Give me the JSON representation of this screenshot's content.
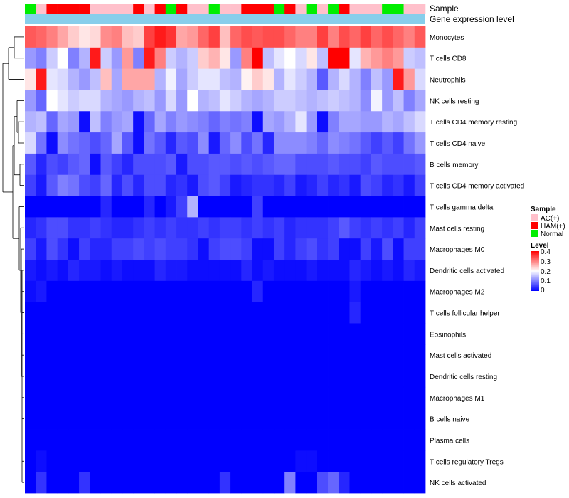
{
  "chart_data": {
    "type": "heatmap",
    "title": "",
    "annotation_labels": [
      "Sample",
      "Gene expression level"
    ],
    "rows": [
      "Monocytes",
      "T cells CD8",
      "Neutrophils",
      "NK cells resting",
      "T cells CD4 memory resting",
      "T cells CD4 naive",
      "B cells memory",
      "T cells CD4 memory activated",
      "T cells gamma delta",
      "Mast cells resting",
      "Macrophages M0",
      "Dendritic cells activated",
      "Macrophages M2",
      "T cells follicular helper",
      "Eosinophils",
      "Mast cells activated",
      "Dendritic cells resting",
      "Macrophages M1",
      "B cells naive",
      "Plasma cells",
      "T cells regulatory  Tregs",
      "NK cells activated"
    ],
    "sample_groups": [
      "Normal",
      "AC(+)",
      "HAM(+)",
      "HAM(+)",
      "HAM(+)",
      "HAM(+)",
      "AC(+)",
      "AC(+)",
      "AC(+)",
      "AC(+)",
      "HAM(+)",
      "AC(+)",
      "HAM(+)",
      "Normal",
      "HAM(+)",
      "AC(+)",
      "AC(+)",
      "Normal",
      "AC(+)",
      "AC(+)",
      "HAM(+)",
      "HAM(+)",
      "HAM(+)",
      "Normal",
      "HAM(+)",
      "AC(+)",
      "Normal",
      "AC(+)",
      "Normal",
      "HAM(+)",
      "AC(+)",
      "AC(+)",
      "AC(+)",
      "Normal",
      "Normal",
      "AC(+)",
      "AC(+)"
    ],
    "legend_sample": {
      "title": "Sample",
      "entries": [
        {
          "label": "AC(+)",
          "color": "#ffc0cb"
        },
        {
          "label": "HAM(+)",
          "color": "#ff0000"
        },
        {
          "label": "Normal",
          "color": "#00ee00"
        }
      ]
    },
    "legend_level": {
      "title": "Level",
      "ticks": [
        "0.4",
        "0.3",
        "0.2",
        "0.1",
        "0"
      ],
      "range": [
        0,
        0.4
      ],
      "colors": {
        "low": "#0000ff",
        "mid": "#ffffff",
        "high": "#ff0000"
      }
    },
    "expression_bar_color": "#87ceeb",
    "values": [
      [
        0.33,
        0.32,
        0.3,
        0.27,
        0.24,
        0.22,
        0.23,
        0.29,
        0.3,
        0.25,
        0.24,
        0.35,
        0.38,
        0.36,
        0.27,
        0.28,
        0.32,
        0.35,
        0.25,
        0.32,
        0.34,
        0.33,
        0.34,
        0.34,
        0.32,
        0.3,
        0.3,
        0.35,
        0.3,
        0.34,
        0.32,
        0.35,
        0.32,
        0.34,
        0.32,
        0.3,
        0.33
      ],
      [
        0.12,
        0.1,
        0.16,
        0.2,
        0.1,
        0.14,
        0.38,
        0.16,
        0.12,
        0.28,
        0.1,
        0.38,
        0.3,
        0.16,
        0.14,
        0.16,
        0.24,
        0.26,
        0.22,
        0.12,
        0.3,
        0.4,
        0.15,
        0.18,
        0.2,
        0.17,
        0.22,
        0.15,
        0.4,
        0.4,
        0.18,
        0.26,
        0.28,
        0.3,
        0.28,
        0.16,
        0.15
      ],
      [
        0.22,
        0.38,
        0.18,
        0.17,
        0.14,
        0.12,
        0.15,
        0.25,
        0.13,
        0.27,
        0.27,
        0.27,
        0.14,
        0.19,
        0.13,
        0.16,
        0.18,
        0.18,
        0.15,
        0.14,
        0.21,
        0.24,
        0.22,
        0.14,
        0.18,
        0.16,
        0.14,
        0.07,
        0.14,
        0.17,
        0.14,
        0.1,
        0.15,
        0.12,
        0.38,
        0.28,
        0.17
      ],
      [
        0.12,
        0.08,
        0.2,
        0.18,
        0.16,
        0.17,
        0.17,
        0.14,
        0.13,
        0.12,
        0.14,
        0.15,
        0.12,
        0.17,
        0.12,
        0.2,
        0.14,
        0.15,
        0.18,
        0.16,
        0.14,
        0.13,
        0.14,
        0.16,
        0.16,
        0.15,
        0.14,
        0.15,
        0.16,
        0.15,
        0.14,
        0.11,
        0.19,
        0.12,
        0.15,
        0.1,
        0.13
      ],
      [
        0.14,
        0.15,
        0.08,
        0.13,
        0.12,
        0.01,
        0.15,
        0.1,
        0.12,
        0.13,
        0.01,
        0.08,
        0.13,
        0.1,
        0.12,
        0.11,
        0.1,
        0.08,
        0.1,
        0.09,
        0.1,
        0.01,
        0.13,
        0.12,
        0.14,
        0.18,
        0.12,
        0.01,
        0.1,
        0.13,
        0.13,
        0.12,
        0.12,
        0.14,
        0.13,
        0.15,
        0.17
      ],
      [
        0.17,
        0.09,
        0.01,
        0.11,
        0.09,
        0.08,
        0.06,
        0.08,
        0.13,
        0.07,
        0.01,
        0.09,
        0.07,
        0.03,
        0.07,
        0.06,
        0.11,
        0.02,
        0.08,
        0.11,
        0.06,
        0.09,
        0.03,
        0.11,
        0.11,
        0.11,
        0.1,
        0.08,
        0.11,
        0.1,
        0.09,
        0.07,
        0.05,
        0.07,
        0.05,
        0.09,
        0.12
      ],
      [
        0.07,
        0.03,
        0.06,
        0.05,
        0.07,
        0.08,
        0.01,
        0.07,
        0.05,
        0.03,
        0.06,
        0.06,
        0.06,
        0.07,
        0.02,
        0.06,
        0.06,
        0.07,
        0.07,
        0.06,
        0.07,
        0.06,
        0.07,
        0.08,
        0.08,
        0.06,
        0.06,
        0.06,
        0.07,
        0.06,
        0.06,
        0.05,
        0.07,
        0.06,
        0.06,
        0.06,
        0.07
      ],
      [
        0.05,
        0.02,
        0.07,
        0.1,
        0.09,
        0.06,
        0.05,
        0.08,
        0.03,
        0.06,
        0.03,
        0.06,
        0.06,
        0.03,
        0.04,
        0.02,
        0.06,
        0.07,
        0.05,
        0.02,
        0.03,
        0.04,
        0.04,
        0.03,
        0.05,
        0.02,
        0.03,
        0.05,
        0.03,
        0.04,
        0.02,
        0.06,
        0.05,
        0.03,
        0.04,
        0.02,
        0.05
      ],
      [
        0.0,
        0.0,
        0.0,
        0.0,
        0.0,
        0.0,
        0.0,
        0.03,
        0.0,
        0.0,
        0.0,
        0.03,
        0.0,
        0.02,
        0.05,
        0.14,
        0.0,
        0.0,
        0.0,
        0.0,
        0.0,
        0.05,
        0.0,
        0.0,
        0.0,
        0.0,
        0.0,
        0.0,
        0.0,
        0.0,
        0.0,
        0.0,
        0.0,
        0.0,
        0.0,
        0.0,
        0.0
      ],
      [
        0.03,
        0.04,
        0.06,
        0.06,
        0.04,
        0.04,
        0.05,
        0.04,
        0.03,
        0.03,
        0.04,
        0.05,
        0.04,
        0.05,
        0.04,
        0.04,
        0.05,
        0.04,
        0.05,
        0.05,
        0.04,
        0.05,
        0.04,
        0.05,
        0.03,
        0.04,
        0.04,
        0.04,
        0.05,
        0.07,
        0.05,
        0.04,
        0.05,
        0.04,
        0.05,
        0.03,
        0.05
      ],
      [
        0.05,
        0.02,
        0.06,
        0.04,
        0.01,
        0.05,
        0.03,
        0.03,
        0.05,
        0.05,
        0.06,
        0.05,
        0.06,
        0.05,
        0.05,
        0.04,
        0.01,
        0.05,
        0.06,
        0.06,
        0.05,
        0.01,
        0.01,
        0.05,
        0.03,
        0.05,
        0.06,
        0.04,
        0.05,
        0.01,
        0.01,
        0.05,
        0.02,
        0.06,
        0.01,
        0.05,
        0.05
      ],
      [
        0.02,
        0.01,
        0.02,
        0.01,
        0.03,
        0.02,
        0.02,
        0.01,
        0.02,
        0.01,
        0.01,
        0.01,
        0.03,
        0.02,
        0.02,
        0.01,
        0.01,
        0.01,
        0.01,
        0.01,
        0.03,
        0.01,
        0.02,
        0.01,
        0.01,
        0.01,
        0.02,
        0.01,
        0.01,
        0.01,
        0.03,
        0.02,
        0.01,
        0.02,
        0.01,
        0.03,
        0.02
      ],
      [
        0.01,
        0.02,
        0.0,
        0.0,
        0.0,
        0.0,
        0.0,
        0.0,
        0.0,
        0.0,
        0.0,
        0.0,
        0.0,
        0.0,
        0.0,
        0.0,
        0.0,
        0.0,
        0.0,
        0.0,
        0.0,
        0.03,
        0.0,
        0.0,
        0.0,
        0.0,
        0.0,
        0.0,
        0.0,
        0.0,
        0.02,
        0.0,
        0.0,
        0.0,
        0.0,
        0.0,
        0.0
      ],
      [
        0.0,
        0.0,
        0.0,
        0.0,
        0.0,
        0.0,
        0.0,
        0.0,
        0.0,
        0.0,
        0.0,
        0.0,
        0.0,
        0.0,
        0.0,
        0.0,
        0.0,
        0.0,
        0.0,
        0.0,
        0.0,
        0.0,
        0.0,
        0.0,
        0.0,
        0.0,
        0.0,
        0.0,
        0.0,
        0.0,
        0.03,
        0.0,
        0.0,
        0.0,
        0.0,
        0.0,
        0.0
      ],
      [
        0.0,
        0.0,
        0.0,
        0.0,
        0.0,
        0.0,
        0.0,
        0.0,
        0.0,
        0.0,
        0.0,
        0.0,
        0.0,
        0.0,
        0.0,
        0.0,
        0.0,
        0.0,
        0.0,
        0.0,
        0.0,
        0.0,
        0.0,
        0.0,
        0.0,
        0.0,
        0.0,
        0.0,
        0.0,
        0.0,
        0.0,
        0.0,
        0.0,
        0.0,
        0.0,
        0.0,
        0.0
      ],
      [
        0.0,
        0.0,
        0.0,
        0.0,
        0.0,
        0.0,
        0.0,
        0.0,
        0.0,
        0.0,
        0.0,
        0.0,
        0.0,
        0.0,
        0.0,
        0.0,
        0.0,
        0.0,
        0.0,
        0.0,
        0.0,
        0.0,
        0.0,
        0.0,
        0.0,
        0.0,
        0.0,
        0.0,
        0.0,
        0.0,
        0.0,
        0.0,
        0.0,
        0.0,
        0.0,
        0.0,
        0.0
      ],
      [
        0.0,
        0.0,
        0.0,
        0.0,
        0.0,
        0.0,
        0.0,
        0.0,
        0.0,
        0.0,
        0.0,
        0.0,
        0.0,
        0.0,
        0.0,
        0.0,
        0.0,
        0.0,
        0.0,
        0.0,
        0.0,
        0.0,
        0.0,
        0.0,
        0.0,
        0.0,
        0.0,
        0.0,
        0.0,
        0.0,
        0.0,
        0.0,
        0.0,
        0.0,
        0.0,
        0.0,
        0.0
      ],
      [
        0.0,
        0.0,
        0.0,
        0.0,
        0.0,
        0.0,
        0.0,
        0.0,
        0.0,
        0.0,
        0.0,
        0.0,
        0.0,
        0.0,
        0.0,
        0.0,
        0.0,
        0.0,
        0.0,
        0.0,
        0.0,
        0.0,
        0.0,
        0.0,
        0.0,
        0.0,
        0.0,
        0.0,
        0.0,
        0.0,
        0.0,
        0.0,
        0.0,
        0.0,
        0.0,
        0.0,
        0.0
      ],
      [
        0.0,
        0.0,
        0.0,
        0.0,
        0.0,
        0.0,
        0.0,
        0.0,
        0.0,
        0.0,
        0.0,
        0.0,
        0.0,
        0.0,
        0.0,
        0.0,
        0.0,
        0.0,
        0.0,
        0.0,
        0.0,
        0.0,
        0.0,
        0.0,
        0.0,
        0.0,
        0.0,
        0.0,
        0.0,
        0.0,
        0.0,
        0.0,
        0.0,
        0.0,
        0.0,
        0.0,
        0.0
      ],
      [
        0.0,
        0.0,
        0.0,
        0.0,
        0.0,
        0.0,
        0.0,
        0.0,
        0.0,
        0.0,
        0.0,
        0.0,
        0.0,
        0.0,
        0.0,
        0.0,
        0.0,
        0.0,
        0.0,
        0.0,
        0.0,
        0.0,
        0.0,
        0.0,
        0.0,
        0.0,
        0.0,
        0.0,
        0.0,
        0.0,
        0.0,
        0.0,
        0.0,
        0.0,
        0.0,
        0.0,
        0.0
      ],
      [
        0.0,
        0.01,
        0.0,
        0.0,
        0.0,
        0.0,
        0.0,
        0.0,
        0.0,
        0.0,
        0.0,
        0.0,
        0.0,
        0.0,
        0.0,
        0.0,
        0.0,
        0.0,
        0.0,
        0.0,
        0.0,
        0.0,
        0.0,
        0.0,
        0.0,
        0.01,
        0.01,
        0.0,
        0.0,
        0.0,
        0.0,
        0.0,
        0.0,
        0.0,
        0.0,
        0.0,
        0.0
      ],
      [
        0.0,
        0.04,
        0.0,
        0.0,
        0.0,
        0.04,
        0.0,
        0.0,
        0.0,
        0.0,
        0.0,
        0.0,
        0.0,
        0.0,
        0.0,
        0.0,
        0.0,
        0.0,
        0.04,
        0.0,
        0.0,
        0.0,
        0.0,
        0.0,
        0.1,
        0.0,
        0.0,
        0.06,
        0.08,
        0.03,
        0.0,
        0.0,
        0.0,
        0.0,
        0.0,
        0.0,
        0.0
      ]
    ]
  }
}
